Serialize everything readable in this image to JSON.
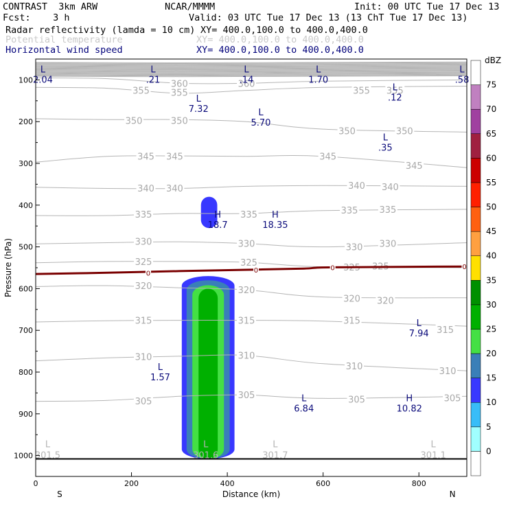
{
  "header": {
    "model": "CONTRAST  3km ARW",
    "center": "NCAR/MMMM",
    "init": "Init: 00 UTC Tue 17 Dec 13",
    "fcst": "Fcst:    3 h",
    "valid": "Valid: 03 UTC Tue 17 Dec 13 (13 ChT Tue 17 Dec 13)",
    "field1": "Radar reflectivity (lamda = 10 cm)",
    "field1_xy": "XY= 400.0,100.0 to 400.0,400.0",
    "field2": "Potential temperature",
    "field2_xy": "XY= 400.0,100.0 to 400.0,400.0",
    "field3": "Horizontal wind speed",
    "field3_xy": "XY= 400.0,100.0 to 400.0,400.0"
  },
  "colors": {
    "theta": "#b4b4b4",
    "wind_labels": "#0a0a7a",
    "freezing_line": "#7a0000",
    "header_navy": "#00007a"
  },
  "chart_data": {
    "type": "cross-section",
    "xlabel": "Distance (km)",
    "ylabel": "Pressure (hPa)",
    "xlim": [
      0,
      900
    ],
    "ylim": [
      1050,
      50
    ],
    "x_ticks": [
      "0",
      "200",
      "400",
      "600",
      "800"
    ],
    "x_tick_values": [
      0,
      200,
      400,
      600,
      800
    ],
    "y_ticks": [
      "100",
      "200",
      "300",
      "400",
      "500",
      "600",
      "700",
      "800",
      "900",
      "1000"
    ],
    "y_tick_values": [
      100,
      200,
      300,
      400,
      500,
      600,
      700,
      800,
      900,
      1000
    ],
    "endpoint_labels": {
      "left": "S",
      "right": "N"
    },
    "colorbar": {
      "unit": "dBZ",
      "levels": [
        "0",
        "5",
        "10",
        "15",
        "20",
        "25",
        "30",
        "35",
        "40",
        "45",
        "50",
        "55",
        "60",
        "65",
        "70",
        "75"
      ],
      "colors": [
        "#ffffff",
        "#a0ffff",
        "#38bdf8",
        "#3838ff",
        "#3a7fb8",
        "#44e044",
        "#00b000",
        "#009000",
        "#ffe000",
        "#ffa040",
        "#ff6010",
        "#ff2000",
        "#cc0000",
        "#a02040",
        "#a040a0",
        "#c080c0",
        "#ffffff"
      ]
    },
    "theta_contours": [
      {
        "value": 360,
        "labels": [
          {
            "text": "360",
            "x": 300,
            "p": 108
          },
          {
            "text": "360",
            "x": 440,
            "p": 108
          }
        ],
        "points": [
          [
            0,
            95
          ],
          [
            150,
            97
          ],
          [
            300,
            108
          ],
          [
            440,
            108
          ],
          [
            600,
            103
          ],
          [
            900,
            100
          ]
        ]
      },
      {
        "value": 355,
        "labels": [
          {
            "text": "355",
            "x": 220,
            "p": 125
          },
          {
            "text": "355",
            "x": 300,
            "p": 130
          },
          {
            "text": "355",
            "x": 680,
            "p": 125
          },
          {
            "text": "355",
            "x": 750,
            "p": 125
          }
        ],
        "points": [
          [
            0,
            118
          ],
          [
            150,
            120
          ],
          [
            300,
            132
          ],
          [
            440,
            125
          ],
          [
            600,
            118
          ],
          [
            900,
            115
          ]
        ]
      },
      {
        "value": 350,
        "labels": [
          {
            "text": "350",
            "x": 205,
            "p": 197
          },
          {
            "text": "350",
            "x": 300,
            "p": 197
          },
          {
            "text": "350",
            "x": 650,
            "p": 222
          },
          {
            "text": "350",
            "x": 770,
            "p": 222
          }
        ],
        "points": [
          [
            0,
            193
          ],
          [
            150,
            195
          ],
          [
            300,
            195
          ],
          [
            440,
            200
          ],
          [
            600,
            218
          ],
          [
            900,
            225
          ]
        ]
      },
      {
        "value": 345,
        "labels": [
          {
            "text": "345",
            "x": 230,
            "p": 283
          },
          {
            "text": "345",
            "x": 290,
            "p": 283
          },
          {
            "text": "345",
            "x": 610,
            "p": 283
          },
          {
            "text": "345",
            "x": 790,
            "p": 305
          }
        ],
        "points": [
          [
            0,
            297
          ],
          [
            150,
            283
          ],
          [
            300,
            282
          ],
          [
            440,
            283
          ],
          [
            600,
            283
          ],
          [
            900,
            310
          ]
        ]
      },
      {
        "value": 340,
        "labels": [
          {
            "text": "340",
            "x": 230,
            "p": 359
          },
          {
            "text": "340",
            "x": 290,
            "p": 359
          },
          {
            "text": "340",
            "x": 670,
            "p": 353
          },
          {
            "text": "340",
            "x": 740,
            "p": 356
          }
        ],
        "points": [
          [
            0,
            357
          ],
          [
            150,
            360
          ],
          [
            300,
            360
          ],
          [
            440,
            355
          ],
          [
            600,
            353
          ],
          [
            900,
            355
          ]
        ]
      },
      {
        "value": 335,
        "labels": [
          {
            "text": "335",
            "x": 225,
            "p": 422
          },
          {
            "text": "335",
            "x": 445,
            "p": 422
          },
          {
            "text": "335",
            "x": 655,
            "p": 412
          },
          {
            "text": "335",
            "x": 735,
            "p": 410
          }
        ],
        "points": [
          [
            0,
            425
          ],
          [
            150,
            425
          ],
          [
            300,
            420
          ],
          [
            440,
            420
          ],
          [
            600,
            413
          ],
          [
            900,
            410
          ]
        ]
      },
      {
        "value": 330,
        "labels": [
          {
            "text": "330",
            "x": 225,
            "p": 487
          },
          {
            "text": "330",
            "x": 440,
            "p": 492
          },
          {
            "text": "330",
            "x": 665,
            "p": 500
          },
          {
            "text": "330",
            "x": 735,
            "p": 492
          }
        ],
        "points": [
          [
            0,
            493
          ],
          [
            150,
            490
          ],
          [
            300,
            488
          ],
          [
            440,
            492
          ],
          [
            600,
            500
          ],
          [
            900,
            490
          ]
        ]
      },
      {
        "value": 325,
        "labels": [
          {
            "text": "325",
            "x": 225,
            "p": 535
          },
          {
            "text": "325",
            "x": 445,
            "p": 537
          },
          {
            "text": "325",
            "x": 660,
            "p": 548
          },
          {
            "text": "325",
            "x": 720,
            "p": 546
          }
        ],
        "points": [
          [
            0,
            538
          ],
          [
            150,
            535
          ],
          [
            300,
            535
          ],
          [
            440,
            537
          ],
          [
            600,
            548
          ],
          [
            900,
            550
          ]
        ]
      },
      {
        "value": 320,
        "labels": [
          {
            "text": "320",
            "x": 225,
            "p": 593
          },
          {
            "text": "320",
            "x": 440,
            "p": 603
          },
          {
            "text": "320",
            "x": 660,
            "p": 623
          },
          {
            "text": "320",
            "x": 730,
            "p": 628
          }
        ],
        "points": [
          [
            0,
            595
          ],
          [
            150,
            593
          ],
          [
            300,
            598
          ],
          [
            440,
            603
          ],
          [
            600,
            620
          ],
          [
            900,
            622
          ]
        ]
      },
      {
        "value": 315,
        "labels": [
          {
            "text": "315",
            "x": 225,
            "p": 676
          },
          {
            "text": "315",
            "x": 440,
            "p": 676
          },
          {
            "text": "315",
            "x": 660,
            "p": 676
          },
          {
            "text": "315",
            "x": 855,
            "p": 698
          }
        ],
        "points": [
          [
            0,
            680
          ],
          [
            150,
            677
          ],
          [
            300,
            676
          ],
          [
            440,
            676
          ],
          [
            600,
            678
          ],
          [
            900,
            690
          ]
        ]
      },
      {
        "value": 310,
        "labels": [
          {
            "text": "310",
            "x": 225,
            "p": 763
          },
          {
            "text": "310",
            "x": 440,
            "p": 760
          },
          {
            "text": "310",
            "x": 665,
            "p": 785
          },
          {
            "text": "310",
            "x": 860,
            "p": 797
          }
        ],
        "points": [
          [
            0,
            773
          ],
          [
            150,
            766
          ],
          [
            300,
            762
          ],
          [
            440,
            760
          ],
          [
            600,
            780
          ],
          [
            900,
            797
          ]
        ]
      },
      {
        "value": 305,
        "labels": [
          {
            "text": "305",
            "x": 225,
            "p": 869
          },
          {
            "text": "305",
            "x": 440,
            "p": 854
          },
          {
            "text": "305",
            "x": 670,
            "p": 865
          },
          {
            "text": "305",
            "x": 870,
            "p": 862
          }
        ],
        "points": [
          [
            0,
            870
          ],
          [
            150,
            868
          ],
          [
            300,
            858
          ],
          [
            440,
            855
          ],
          [
            600,
            863
          ],
          [
            900,
            858
          ]
        ]
      }
    ],
    "freezing_level": {
      "label": "0",
      "points": [
        [
          0,
          565
        ],
        [
          150,
          562
        ],
        [
          300,
          558
        ],
        [
          440,
          555
        ],
        [
          560,
          552
        ],
        [
          620,
          549
        ],
        [
          900,
          547
        ]
      ],
      "label_positions": [
        [
          235,
          562
        ],
        [
          460,
          555
        ],
        [
          620,
          549
        ],
        [
          895,
          547
        ]
      ]
    },
    "wind_speed_labels": [
      {
        "letter": "L",
        "value": "2.04",
        "x": 15,
        "p": 82
      },
      {
        "letter": "L",
        "value": ".21",
        "x": 245,
        "p": 82
      },
      {
        "letter": "L",
        "value": ".14",
        "x": 440,
        "p": 82
      },
      {
        "letter": "L",
        "value": "1.70",
        "x": 590,
        "p": 82
      },
      {
        "letter": "L",
        "value": ".58",
        "x": 890,
        "p": 82
      },
      {
        "letter": "L",
        "value": ".12",
        "x": 750,
        "p": 125
      },
      {
        "letter": "L",
        "value": "7.32",
        "x": 340,
        "p": 152
      },
      {
        "letter": "L",
        "value": "5.70",
        "x": 470,
        "p": 185
      },
      {
        "letter": "L",
        "value": ".35",
        "x": 730,
        "p": 245
      },
      {
        "letter": "H",
        "value": "18.7",
        "x": 380,
        "p": 430
      },
      {
        "letter": "H",
        "value": "18.35",
        "x": 500,
        "p": 430
      },
      {
        "letter": "L",
        "value": "7.94",
        "x": 800,
        "p": 690
      },
      {
        "letter": "L",
        "value": "1.57",
        "x": 260,
        "p": 795
      },
      {
        "letter": "L",
        "value": "6.84",
        "x": 560,
        "p": 870
      },
      {
        "letter": "H",
        "value": "10.82",
        "x": 780,
        "p": 870
      }
    ],
    "surface_labels": [
      {
        "letter": "L",
        "value": "301.5",
        "x": 25,
        "p": 1000
      },
      {
        "letter": "L",
        "value": "301.6",
        "x": 355,
        "p": 1000
      },
      {
        "letter": "L",
        "value": "301.7",
        "x": 500,
        "p": 1000
      },
      {
        "letter": "L",
        "value": "301.1",
        "x": 830,
        "p": 1000
      }
    ],
    "reflectivity_cells": [
      {
        "dbz": 10,
        "x_center": 362,
        "x_halfwidth": 17,
        "p_top": 380,
        "p_bottom": 455
      },
      {
        "dbz": 10,
        "x_center": 360,
        "x_halfwidth": 55,
        "p_top": 570,
        "p_bottom": 1008
      },
      {
        "dbz": 15,
        "x_center": 360,
        "x_halfwidth": 45,
        "p_top": 580,
        "p_bottom": 1008
      },
      {
        "dbz": 20,
        "x_center": 360,
        "x_halfwidth": 33,
        "p_top": 592,
        "p_bottom": 1008
      },
      {
        "dbz": 25,
        "x_center": 360,
        "x_halfwidth": 20,
        "p_top": 600,
        "p_bottom": 1008
      }
    ]
  }
}
